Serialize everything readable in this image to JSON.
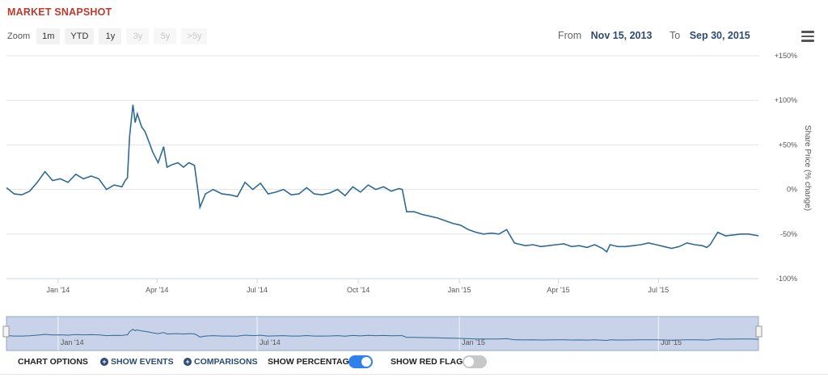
{
  "header": {
    "title": "MARKET SNAPSHOT"
  },
  "zoom": {
    "label": "Zoom",
    "buttons": [
      {
        "label": "1m",
        "enabled": true
      },
      {
        "label": "YTD",
        "enabled": true
      },
      {
        "label": "1y",
        "enabled": true
      },
      {
        "label": "3y",
        "enabled": false
      },
      {
        "label": "5y",
        "enabled": false
      },
      {
        "label": ">5y",
        "enabled": false
      }
    ]
  },
  "range": {
    "from_label": "From",
    "from_value": "Nov 15, 2013",
    "to_label": "To",
    "to_value": "Sep 30, 2015"
  },
  "options": {
    "heading": "CHART OPTIONS",
    "show_events": "SHOW EVENTS",
    "comparisons": "COMPARISONS",
    "show_percentage": "SHOW PERCENTAGE",
    "show_percentage_on": true,
    "show_red_flags": "SHOW RED FLAGS",
    "show_red_flags_on": false
  },
  "colors": {
    "line": "#2e6a94",
    "navigator_fill": "#c8d2e8",
    "toggle_on": "#2f80ed",
    "title": "#c0392b"
  },
  "chart_data": {
    "type": "line",
    "ylabel": "Share Price (% change)",
    "ylim": [
      -100,
      150
    ],
    "yticks": [
      "+150%",
      "+100%",
      "+50%",
      "0%",
      "-50%",
      "-100%"
    ],
    "ytick_values": [
      150,
      100,
      50,
      0,
      -50,
      -100
    ],
    "xlim": [
      "2013-11-15",
      "2015-09-30"
    ],
    "xticks": [
      {
        "label": "Jan '14",
        "date": "2014-01-01"
      },
      {
        "label": "Apr '14",
        "date": "2014-04-01"
      },
      {
        "label": "Jul '14",
        "date": "2014-07-01"
      },
      {
        "label": "Oct '14",
        "date": "2014-10-01"
      },
      {
        "label": "Jan '15",
        "date": "2015-01-01"
      },
      {
        "label": "Apr '15",
        "date": "2015-04-01"
      },
      {
        "label": "Jul '15",
        "date": "2015-07-01"
      }
    ],
    "navigator_labels": [
      "Jan '14",
      "Jul '14",
      "Jan '15",
      "Jul '15"
    ],
    "grid": true,
    "series": [
      {
        "x": [
          "2013-11-15",
          "2013-11-22",
          "2013-11-29",
          "2013-12-06",
          "2013-12-13",
          "2013-12-20",
          "2013-12-27",
          "2014-01-03",
          "2014-01-10",
          "2014-01-17",
          "2014-01-24",
          "2014-01-31",
          "2014-02-07",
          "2014-02-14",
          "2014-02-21",
          "2014-02-28",
          "2014-03-03",
          "2014-03-05",
          "2014-03-07",
          "2014-03-10",
          "2014-03-12",
          "2014-03-14",
          "2014-03-18",
          "2014-03-21",
          "2014-03-25",
          "2014-03-28",
          "2014-04-02",
          "2014-04-07",
          "2014-04-10",
          "2014-04-15",
          "2014-04-20",
          "2014-04-25",
          "2014-04-30",
          "2014-05-05",
          "2014-05-08",
          "2014-05-10",
          "2014-05-15",
          "2014-05-22",
          "2014-05-30",
          "2014-06-06",
          "2014-06-13",
          "2014-06-20",
          "2014-06-27",
          "2014-07-04",
          "2014-07-11",
          "2014-07-18",
          "2014-07-25",
          "2014-08-01",
          "2014-08-08",
          "2014-08-15",
          "2014-08-22",
          "2014-08-29",
          "2014-09-05",
          "2014-09-12",
          "2014-09-19",
          "2014-09-26",
          "2014-10-03",
          "2014-10-10",
          "2014-10-17",
          "2014-10-24",
          "2014-10-31",
          "2014-11-07",
          "2014-11-10",
          "2014-11-14",
          "2014-11-21",
          "2014-11-28",
          "2014-12-05",
          "2014-12-12",
          "2014-12-19",
          "2014-12-26",
          "2015-01-02",
          "2015-01-09",
          "2015-01-16",
          "2015-01-23",
          "2015-01-30",
          "2015-02-06",
          "2015-02-13",
          "2015-02-20",
          "2015-02-23",
          "2015-03-02",
          "2015-03-09",
          "2015-03-16",
          "2015-03-23",
          "2015-03-30",
          "2015-04-06",
          "2015-04-13",
          "2015-04-20",
          "2015-04-27",
          "2015-05-04",
          "2015-05-11",
          "2015-05-15",
          "2015-05-18",
          "2015-05-25",
          "2015-06-01",
          "2015-06-08",
          "2015-06-15",
          "2015-06-22",
          "2015-06-29",
          "2015-07-06",
          "2015-07-13",
          "2015-07-20",
          "2015-07-27",
          "2015-08-03",
          "2015-08-10",
          "2015-08-14",
          "2015-08-17",
          "2015-08-24",
          "2015-08-31",
          "2015-09-07",
          "2015-09-14",
          "2015-09-21",
          "2015-09-30"
        ],
        "y": [
          2,
          -5,
          -6,
          -2,
          8,
          20,
          10,
          12,
          8,
          17,
          12,
          15,
          12,
          0,
          5,
          3,
          10,
          13,
          60,
          95,
          75,
          85,
          70,
          65,
          52,
          42,
          30,
          48,
          25,
          28,
          30,
          25,
          30,
          27,
          0,
          -20,
          -5,
          0,
          -5,
          -6,
          -8,
          8,
          0,
          7,
          -5,
          -3,
          0,
          -6,
          -5,
          2,
          -5,
          -6,
          -4,
          0,
          -7,
          3,
          -3,
          5,
          0,
          3,
          -2,
          1,
          0,
          -25,
          -25,
          -28,
          -30,
          -32,
          -35,
          -38,
          -40,
          -45,
          -48,
          -50,
          -49,
          -50,
          -45,
          -60,
          -61,
          -63,
          -62,
          -64,
          -63,
          -62,
          -61,
          -64,
          -63,
          -65,
          -62,
          -66,
          -70,
          -62,
          -64,
          -64,
          -63,
          -62,
          -60,
          -62,
          -64,
          -66,
          -64,
          -60,
          -62,
          -63,
          -65,
          -62,
          -48,
          -52,
          -51,
          -50,
          -50,
          -52
        ]
      }
    ]
  }
}
